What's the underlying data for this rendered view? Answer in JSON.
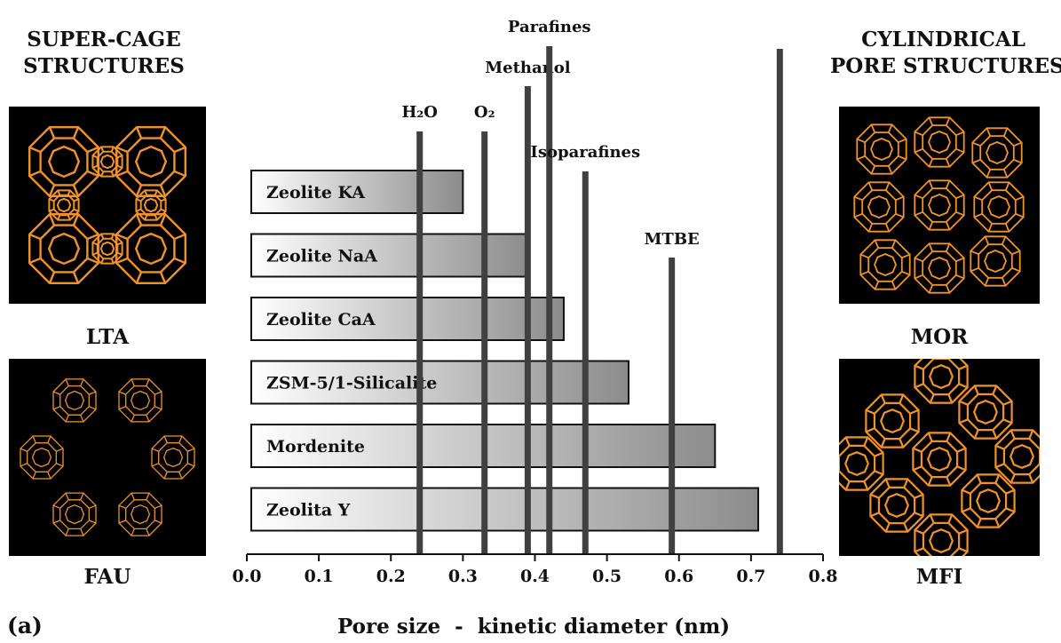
{
  "panel_label": "(a)",
  "left_title": [
    "SUPER-CAGE",
    "STRUCTURES"
  ],
  "right_title": [
    "CYLINDRICAL",
    "PORE STRUCTURES"
  ],
  "structures": {
    "lta": "LTA",
    "fau": "FAU",
    "mor": "MOR",
    "mfi": "MFI"
  },
  "colors": {
    "framework": "#f0922a",
    "panel_bg": "#000000",
    "bar_light": "#ffffff",
    "bar_dark": "#8c8c8c",
    "molecule_line": "#404040"
  },
  "chart_data": {
    "type": "bar",
    "orientation": "horizontal",
    "categories": [
      "Zeolite KA",
      "Zeolite NaA",
      "Zeolite CaA",
      "ZSM-5/1-Silicalite",
      "Mordenite",
      "Zeolita Y"
    ],
    "values": [
      0.3,
      0.39,
      0.44,
      0.53,
      0.65,
      0.71
    ],
    "xlabel": "Pore size  -  kinetic diameter (nm)",
    "xlim": [
      0.0,
      0.8
    ],
    "xticks": [
      "0.0",
      "0.1",
      "0.2",
      "0.3",
      "0.4",
      "0.5",
      "0.6",
      "0.7",
      "0.8"
    ],
    "molecules": [
      {
        "name": "H₂O",
        "x": 0.24
      },
      {
        "name": "O₂",
        "x": 0.33
      },
      {
        "name": "Methanol",
        "x": 0.39
      },
      {
        "name": "Parafines",
        "x": 0.42
      },
      {
        "name": "Isoparafines",
        "x": 0.47
      },
      {
        "name": "MTBE",
        "x": 0.59
      },
      {
        "name": "",
        "x": 0.74
      }
    ],
    "grid": false,
    "legend": "none"
  }
}
